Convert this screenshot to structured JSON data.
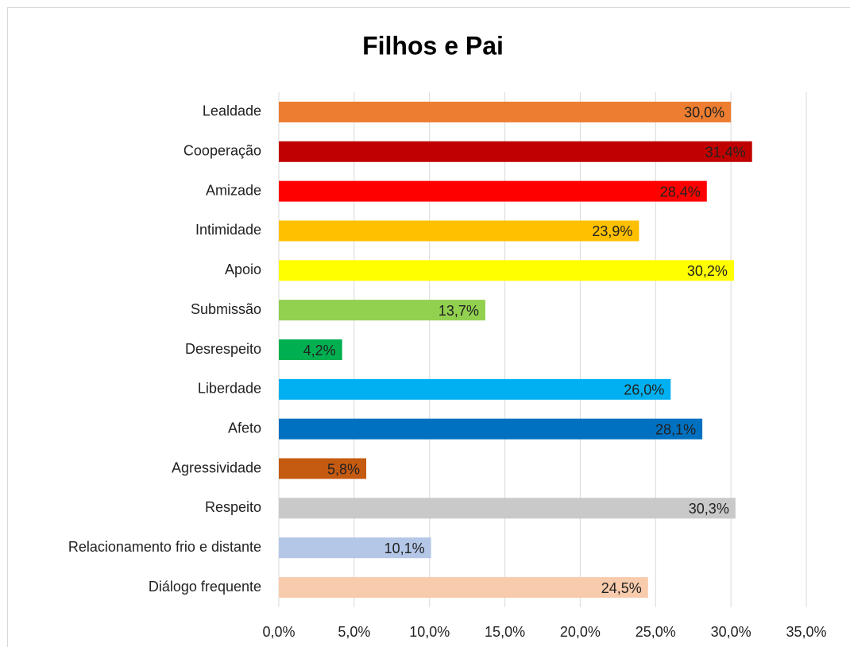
{
  "chart_data": {
    "type": "bar",
    "orientation": "horizontal",
    "title": "Filhos e Pai",
    "categories": [
      "Lealdade",
      "Cooperação",
      "Amizade",
      "Intimidade",
      "Apoio",
      "Submissão",
      "Desrespeito",
      "Liberdade",
      "Afeto",
      "Agressividade",
      "Respeito",
      "Relacionamento frio e distante",
      "Diálogo frequente"
    ],
    "values": [
      30.0,
      31.4,
      28.4,
      23.9,
      30.2,
      13.7,
      4.2,
      26.0,
      28.1,
      5.8,
      30.3,
      10.1,
      24.5
    ],
    "value_labels": [
      "30,0%",
      "31,4%",
      "28,4%",
      "23,9%",
      "30,2%",
      "13,7%",
      "4,2%",
      "26,0%",
      "28,1%",
      "5,8%",
      "30,3%",
      "10,1%",
      "24,5%"
    ],
    "colors": [
      "#ED7D31",
      "#C00000",
      "#FF0000",
      "#FFC000",
      "#FFFF00",
      "#92D050",
      "#00B050",
      "#00B0F0",
      "#0070C0",
      "#C55A11",
      "#C9C9C9",
      "#B4C7E7",
      "#F8CBAD"
    ],
    "xlim": [
      0,
      35
    ],
    "xticks": [
      {
        "value": 0,
        "label": "0,0%"
      },
      {
        "value": 5,
        "label": "5,0%"
      },
      {
        "value": 10,
        "label": "10,0%"
      },
      {
        "value": 15,
        "label": "15,0%"
      },
      {
        "value": 20,
        "label": "20,0%"
      },
      {
        "value": 25,
        "label": "25,0%"
      },
      {
        "value": 30,
        "label": "30,0%"
      },
      {
        "value": 35,
        "label": "35,0%"
      }
    ],
    "grid": true
  }
}
